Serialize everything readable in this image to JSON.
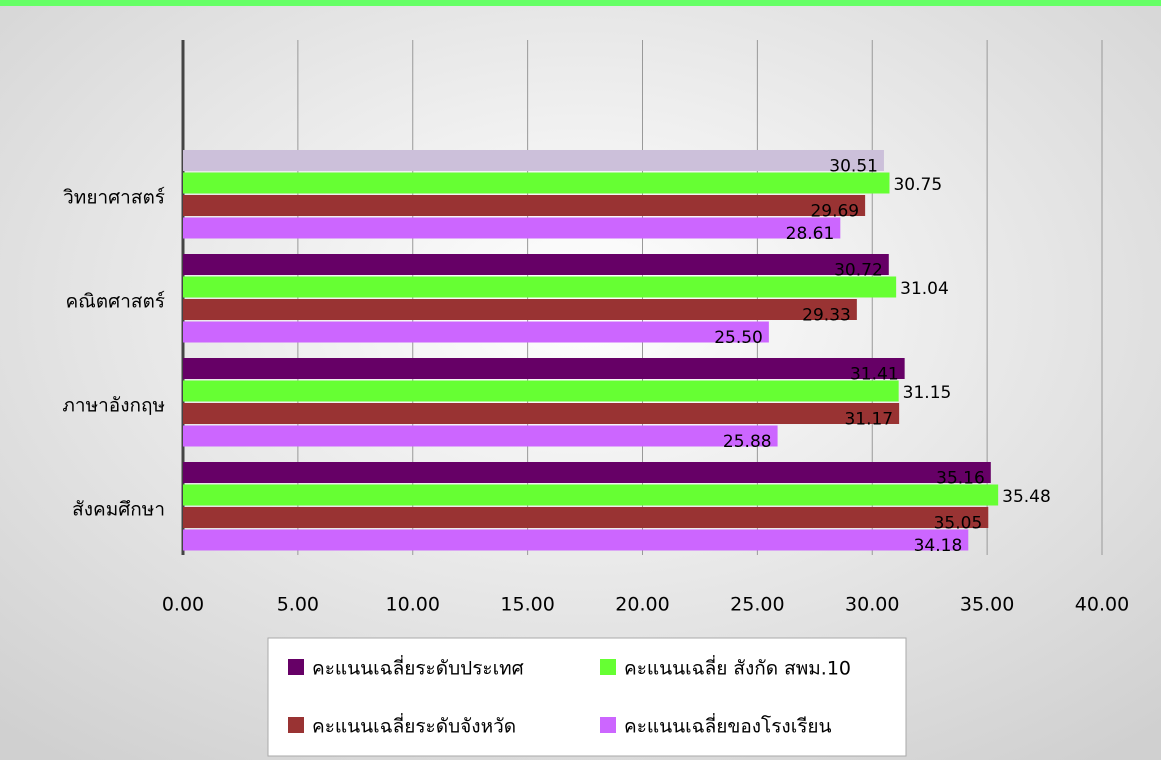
{
  "chart_data": {
    "type": "barh",
    "categories": [
      "วิทยาศาสตร์",
      "คณิตศาสตร์",
      "ภาษาอังกฤษ",
      "สังคมศึกษา"
    ],
    "series": [
      {
        "name": "คะแนนเฉลี่ยระดับประเทศ",
        "color": "#660066",
        "colors": [
          "#ccc0da",
          "#660066",
          "#660066",
          "#660066"
        ],
        "values": [
          30.51,
          30.72,
          31.41,
          35.16
        ],
        "value_labels": [
          "30.51",
          "30.72",
          "31.41",
          "35.16"
        ]
      },
      {
        "name": "คะแนนเฉลี่ย สังกัด สพม.10",
        "color": "#66ff33",
        "values": [
          30.75,
          31.04,
          31.15,
          35.48
        ],
        "value_labels": [
          "30.75",
          "31.04",
          "31.15",
          "35.48"
        ]
      },
      {
        "name": "คะแนนเฉลี่ยระดับจังหวัด",
        "color": "#993333",
        "values": [
          29.69,
          29.33,
          31.17,
          35.05
        ],
        "value_labels": [
          "29.69",
          "29.33",
          "31.17",
          "35.05"
        ]
      },
      {
        "name": "คะแนนเฉลี่ยของโรงเรียน",
        "color": "#cc66ff",
        "values": [
          28.61,
          25.5,
          25.88,
          34.18
        ],
        "value_labels": [
          "28.61",
          "25.50",
          "25.88",
          "34.18"
        ]
      }
    ],
    "xlim": [
      0,
      40
    ],
    "xticks": [
      {
        "value": 0,
        "label": "0.00"
      },
      {
        "value": 5,
        "label": "5.00"
      },
      {
        "value": 10,
        "label": "10.00"
      },
      {
        "value": 15,
        "label": "15.00"
      },
      {
        "value": 20,
        "label": "20.00"
      },
      {
        "value": 25,
        "label": "25.00"
      },
      {
        "value": 30,
        "label": "30.00"
      },
      {
        "value": 35,
        "label": "35.00"
      },
      {
        "value": 40,
        "label": "40.00"
      }
    ],
    "grid": true,
    "legend": "bottom"
  }
}
